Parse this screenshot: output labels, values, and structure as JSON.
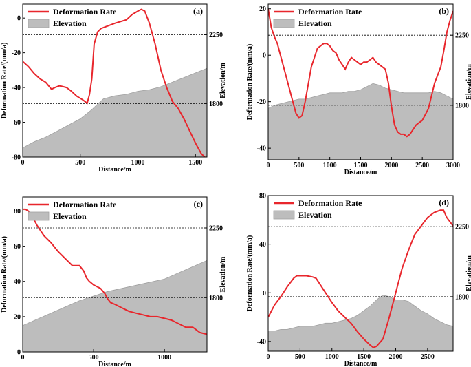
{
  "chart_data": [
    {
      "type": "line",
      "panel_label": "(a)",
      "legend": {
        "placement": "top-left",
        "entries": [
          "Deformation Rate",
          "Elevation"
        ]
      },
      "xlabel": "Distance/m",
      "ylabel": "Deformation Rate/(mm/a)",
      "y2label": "Elevation/m",
      "xlim": [
        0,
        1600
      ],
      "ylim": [
        -80,
        8
      ],
      "y2lim": [
        1450,
        2450
      ],
      "x_ticks": [
        0,
        500,
        1000,
        1500
      ],
      "y_ticks": [
        -80,
        -60,
        -40,
        -20,
        0
      ],
      "y2_ticks": [
        1800,
        2250
      ],
      "ref_lines_y2": [
        1800,
        2250
      ],
      "series": [
        {
          "name": "Deformation Rate",
          "x": [
            0,
            50,
            100,
            150,
            200,
            250,
            280,
            320,
            380,
            420,
            470,
            520,
            560,
            580,
            600,
            620,
            650,
            680,
            720,
            800,
            900,
            950,
            1000,
            1030,
            1060,
            1100,
            1150,
            1200,
            1250,
            1300,
            1350,
            1400,
            1450,
            1500,
            1550,
            1580
          ],
          "values": [
            -25,
            -28,
            -32,
            -35,
            -37,
            -41,
            -40,
            -39,
            -40,
            -42,
            -45,
            -47,
            -49,
            -44,
            -35,
            -15,
            -8,
            -6,
            -5,
            -3,
            -1,
            2,
            4,
            5,
            4,
            -3,
            -15,
            -30,
            -40,
            -48,
            -52,
            -58,
            -65,
            -72,
            -78,
            -80
          ]
        },
        {
          "name": "Elevation",
          "x": [
            0,
            100,
            200,
            300,
            400,
            500,
            600,
            700,
            800,
            900,
            1000,
            1100,
            1200,
            1300,
            1400,
            1500,
            1600
          ],
          "values": [
            1510,
            1550,
            1580,
            1620,
            1660,
            1700,
            1760,
            1830,
            1850,
            1860,
            1880,
            1890,
            1910,
            1940,
            1970,
            2000,
            2030
          ]
        }
      ]
    },
    {
      "type": "line",
      "panel_label": "(b)",
      "legend": {
        "placement": "top-left",
        "entries": [
          "Deformation Rate",
          "Elevation"
        ]
      },
      "xlabel": "Distance/m",
      "ylabel": "Deformation Rate/(mm/a)",
      "y2label": "Elevation/m",
      "xlim": [
        0,
        3000
      ],
      "ylim": [
        -45,
        22
      ],
      "y2lim": [
        1450,
        2450
      ],
      "x_ticks": [
        0,
        500,
        1000,
        1500,
        2000,
        2500,
        3000
      ],
      "y_ticks": [
        -40,
        -20,
        0,
        20
      ],
      "y2_ticks": [
        1800,
        2250
      ],
      "ref_lines_y2": [
        1800,
        2250
      ],
      "series": [
        {
          "name": "Deformation Rate",
          "x": [
            0,
            50,
            100,
            150,
            200,
            300,
            400,
            450,
            500,
            550,
            600,
            700,
            800,
            900,
            950,
            1000,
            1050,
            1100,
            1150,
            1200,
            1250,
            1300,
            1350,
            1400,
            1450,
            1500,
            1550,
            1600,
            1650,
            1700,
            1750,
            1800,
            1850,
            1900,
            1950,
            2000,
            2050,
            2100,
            2150,
            2200,
            2250,
            2300,
            2400,
            2500,
            2600,
            2700,
            2800,
            2850,
            2900,
            2950,
            3000
          ],
          "values": [
            20,
            12,
            8,
            5,
            0,
            -10,
            -20,
            -25,
            -27,
            -26,
            -20,
            -5,
            3,
            5,
            5,
            4,
            2,
            1,
            -2,
            -4,
            -6,
            -3,
            -1,
            -2,
            -3,
            -4,
            -3,
            -3,
            -2,
            -1,
            -3,
            -4,
            -5,
            -6,
            -12,
            -22,
            -30,
            -33,
            -34,
            -34,
            -35,
            -34,
            -30,
            -28,
            -23,
            -12,
            -5,
            2,
            10,
            15,
            19
          ]
        },
        {
          "name": "Elevation",
          "x": [
            0,
            100,
            200,
            300,
            400,
            500,
            600,
            700,
            800,
            900,
            1000,
            1100,
            1200,
            1300,
            1400,
            1500,
            1600,
            1700,
            1800,
            1900,
            2000,
            2100,
            2200,
            2300,
            2400,
            2500,
            2600,
            2700,
            2800,
            2900,
            3000
          ],
          "values": [
            1780,
            1800,
            1810,
            1820,
            1830,
            1840,
            1840,
            1850,
            1860,
            1870,
            1880,
            1880,
            1880,
            1890,
            1890,
            1900,
            1920,
            1940,
            1930,
            1910,
            1900,
            1890,
            1880,
            1880,
            1880,
            1880,
            1880,
            1890,
            1880,
            1860,
            1840
          ]
        }
      ]
    },
    {
      "type": "line",
      "panel_label": "(c)",
      "legend": {
        "placement": "top-left",
        "entries": [
          "Deformation Rate",
          "Elevation"
        ]
      },
      "xlabel": "Distance/m",
      "ylabel": "Deformation Rate/(mm/a)",
      "y2label": "Elevation/m",
      "xlim": [
        0,
        1300
      ],
      "ylim": [
        0,
        88
      ],
      "y2lim": [
        1450,
        2450
      ],
      "x_ticks": [
        0,
        500,
        1000
      ],
      "y_ticks": [
        0,
        20,
        40,
        60,
        80
      ],
      "y2_ticks": [
        1800,
        2250
      ],
      "ref_lines_y2": [
        1800,
        2250
      ],
      "series": [
        {
          "name": "Deformation Rate",
          "x": [
            0,
            20,
            40,
            60,
            80,
            100,
            150,
            200,
            250,
            300,
            350,
            400,
            430,
            450,
            470,
            500,
            550,
            580,
            600,
            620,
            650,
            700,
            750,
            800,
            850,
            900,
            950,
            1000,
            1050,
            1100,
            1150,
            1200,
            1250,
            1300
          ],
          "values": [
            81,
            81,
            80,
            77,
            75,
            72,
            66,
            62,
            57,
            53,
            49,
            49,
            46,
            42,
            40,
            38,
            36,
            33,
            30,
            28,
            27,
            25,
            23,
            22,
            21,
            20,
            20,
            19,
            18,
            16,
            14,
            14,
            11,
            10
          ]
        },
        {
          "name": "Elevation",
          "x": [
            0,
            100,
            200,
            300,
            400,
            500,
            600,
            700,
            800,
            900,
            1000,
            1100,
            1200,
            1300
          ],
          "values": [
            1620,
            1660,
            1700,
            1740,
            1780,
            1810,
            1840,
            1860,
            1880,
            1900,
            1920,
            1960,
            2000,
            2040
          ]
        }
      ]
    },
    {
      "type": "line",
      "panel_label": "(d)",
      "legend": {
        "placement": "top-left",
        "entries": [
          "Deformation Rate",
          "Elevation"
        ]
      },
      "xlabel": "Distance/m",
      "ylabel": "Deformation Rate/(mm/a)",
      "y2label": "Elevation/m",
      "xlim": [
        0,
        2900
      ],
      "ylim": [
        -48,
        80
      ],
      "y2lim": [
        1450,
        2450
      ],
      "x_ticks": [
        0,
        500,
        1000,
        1500,
        2000,
        2500
      ],
      "y_ticks": [
        -40,
        0,
        40,
        80
      ],
      "y2_ticks": [
        1800,
        2250
      ],
      "ref_lines_y2": [
        1800,
        2250
      ],
      "series": [
        {
          "name": "Deformation Rate",
          "x": [
            0,
            100,
            200,
            300,
            400,
            450,
            500,
            600,
            700,
            750,
            800,
            900,
            1000,
            1100,
            1200,
            1300,
            1400,
            1500,
            1600,
            1650,
            1700,
            1800,
            1900,
            2000,
            2100,
            2200,
            2300,
            2400,
            2500,
            2600,
            2700,
            2750,
            2800,
            2900
          ],
          "values": [
            -20,
            -10,
            -3,
            5,
            12,
            14,
            14,
            14,
            13,
            12,
            8,
            0,
            -8,
            -15,
            -20,
            -25,
            -32,
            -38,
            -43,
            -45,
            -44,
            -38,
            -20,
            0,
            20,
            35,
            48,
            55,
            62,
            66,
            68,
            68,
            62,
            55
          ]
        },
        {
          "name": "Elevation",
          "x": [
            0,
            100,
            200,
            300,
            400,
            500,
            600,
            700,
            800,
            900,
            1000,
            1100,
            1200,
            1300,
            1400,
            1500,
            1600,
            1700,
            1800,
            1900,
            2000,
            2100,
            2200,
            2300,
            2400,
            2500,
            2600,
            2700,
            2800,
            2900
          ],
          "values": [
            1580,
            1580,
            1590,
            1590,
            1600,
            1610,
            1610,
            1610,
            1620,
            1630,
            1630,
            1640,
            1650,
            1660,
            1680,
            1710,
            1740,
            1780,
            1810,
            1800,
            1780,
            1780,
            1770,
            1740,
            1710,
            1690,
            1660,
            1640,
            1620,
            1610
          ]
        }
      ]
    }
  ],
  "colors": {
    "rate": "#e8262c",
    "elevation_fill": "#bdbdbd",
    "elevation_stroke": "#a0a0a0"
  }
}
